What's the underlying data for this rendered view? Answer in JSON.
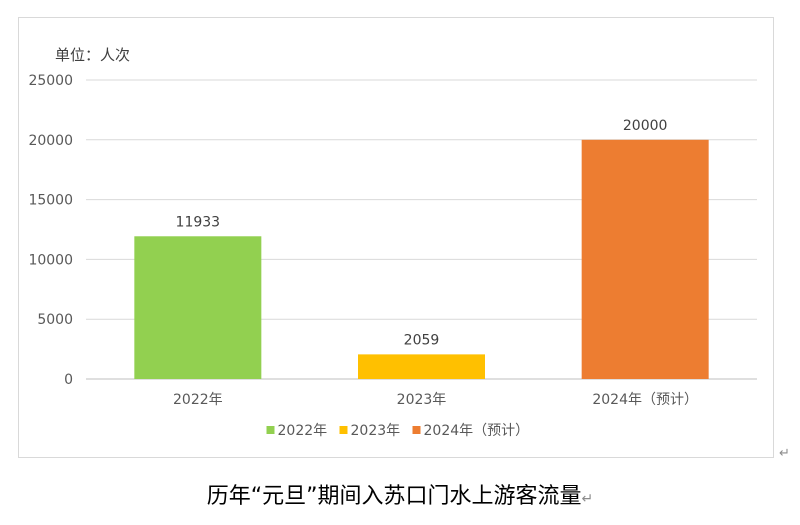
{
  "chart_data": {
    "type": "bar",
    "unit_label": "单位：人次",
    "categories": [
      "2022年",
      "2023年",
      "2024年（预计）"
    ],
    "values": [
      11933,
      2059,
      20000
    ],
    "data_labels": [
      "11933",
      "2059",
      "20000"
    ],
    "colors": [
      "#92d050",
      "#ffc000",
      "#ed7d31"
    ],
    "ylim": [
      0,
      25000
    ],
    "yticks": [
      0,
      5000,
      10000,
      15000,
      20000,
      25000
    ],
    "ytick_labels": [
      "0",
      "5000",
      "10000",
      "15000",
      "20000",
      "25000"
    ],
    "grid": true,
    "legend": {
      "position": "bottom",
      "entries": [
        "2022年",
        "2023年",
        "2024年（预计）"
      ]
    }
  },
  "caption": "历年“元旦”期间入苏口门水上游客流量",
  "paragraph_mark": "↵"
}
